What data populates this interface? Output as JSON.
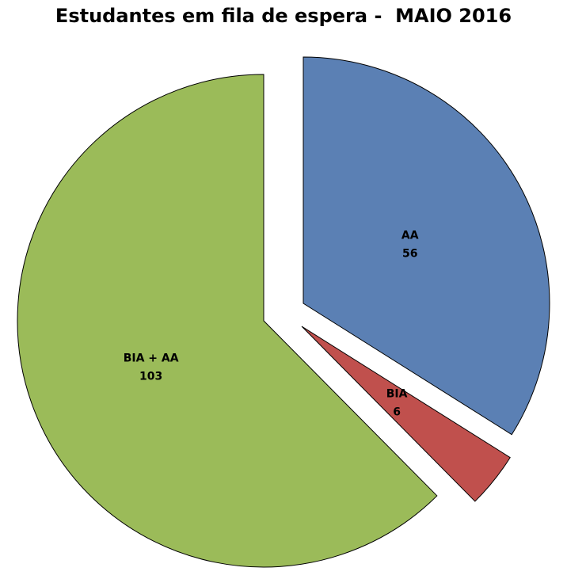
{
  "chart_data": {
    "type": "pie",
    "title": "Estudantes em fila de espera -  MAIO 2016",
    "exploded": true,
    "start_angle": "12 o'clock, clockwise",
    "slices": [
      {
        "label": "AA",
        "value": 56,
        "color": "#5B80B4"
      },
      {
        "label": "BIA",
        "value": 6,
        "color": "#C0504D"
      },
      {
        "label": "BIA + AA",
        "value": 103,
        "color": "#9BBB59"
      }
    ]
  }
}
